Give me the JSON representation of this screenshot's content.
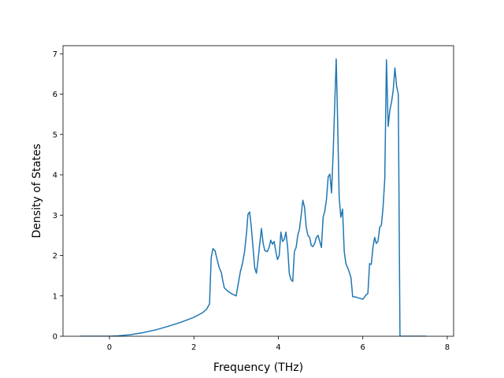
{
  "chart_data": {
    "type": "line",
    "title": "",
    "xlabel": "Frequency (THz)",
    "ylabel": "Density of States",
    "xlim": [
      -1.1,
      8.15
    ],
    "ylim": [
      0,
      7.2
    ],
    "x_ticks": [
      0,
      2,
      4,
      6,
      8
    ],
    "y_ticks": [
      0,
      1,
      2,
      3,
      4,
      5,
      6,
      7
    ],
    "grid": false,
    "legend": "none",
    "series": [
      {
        "color": "#1f77b4",
        "points": [
          [
            -0.7,
            0
          ],
          [
            0.0,
            0
          ],
          [
            0.2,
            0.01
          ],
          [
            0.5,
            0.04
          ],
          [
            0.8,
            0.09
          ],
          [
            1.1,
            0.16
          ],
          [
            1.4,
            0.25
          ],
          [
            1.7,
            0.35
          ],
          [
            2.0,
            0.47
          ],
          [
            2.2,
            0.58
          ],
          [
            2.3,
            0.67
          ],
          [
            2.37,
            0.8
          ],
          [
            2.41,
            1.95
          ],
          [
            2.45,
            2.17
          ],
          [
            2.5,
            2.12
          ],
          [
            2.55,
            1.9
          ],
          [
            2.6,
            1.7
          ],
          [
            2.65,
            1.58
          ],
          [
            2.68,
            1.4
          ],
          [
            2.72,
            1.2
          ],
          [
            2.8,
            1.12
          ],
          [
            2.9,
            1.05
          ],
          [
            3.0,
            1.0
          ],
          [
            3.05,
            1.3
          ],
          [
            3.1,
            1.6
          ],
          [
            3.15,
            1.8
          ],
          [
            3.2,
            2.1
          ],
          [
            3.25,
            2.6
          ],
          [
            3.28,
            3.02
          ],
          [
            3.32,
            3.08
          ],
          [
            3.36,
            2.7
          ],
          [
            3.4,
            2.2
          ],
          [
            3.44,
            1.7
          ],
          [
            3.48,
            1.56
          ],
          [
            3.52,
            1.9
          ],
          [
            3.56,
            2.3
          ],
          [
            3.6,
            2.67
          ],
          [
            3.64,
            2.3
          ],
          [
            3.68,
            2.12
          ],
          [
            3.74,
            2.1
          ],
          [
            3.78,
            2.2
          ],
          [
            3.82,
            2.38
          ],
          [
            3.86,
            2.28
          ],
          [
            3.9,
            2.35
          ],
          [
            3.94,
            2.1
          ],
          [
            3.98,
            1.9
          ],
          [
            4.02,
            2.0
          ],
          [
            4.06,
            2.58
          ],
          [
            4.1,
            2.35
          ],
          [
            4.14,
            2.4
          ],
          [
            4.18,
            2.58
          ],
          [
            4.22,
            2.2
          ],
          [
            4.26,
            1.55
          ],
          [
            4.3,
            1.4
          ],
          [
            4.34,
            1.36
          ],
          [
            4.38,
            2.1
          ],
          [
            4.42,
            2.2
          ],
          [
            4.46,
            2.5
          ],
          [
            4.5,
            2.65
          ],
          [
            4.54,
            3.0
          ],
          [
            4.58,
            3.37
          ],
          [
            4.62,
            3.2
          ],
          [
            4.66,
            2.7
          ],
          [
            4.7,
            2.5
          ],
          [
            4.74,
            2.45
          ],
          [
            4.78,
            2.25
          ],
          [
            4.82,
            2.22
          ],
          [
            4.86,
            2.3
          ],
          [
            4.9,
            2.45
          ],
          [
            4.94,
            2.5
          ],
          [
            4.98,
            2.35
          ],
          [
            5.02,
            2.2
          ],
          [
            5.06,
            2.95
          ],
          [
            5.1,
            3.1
          ],
          [
            5.14,
            3.4
          ],
          [
            5.18,
            3.95
          ],
          [
            5.22,
            4.02
          ],
          [
            5.26,
            3.55
          ],
          [
            5.3,
            4.6
          ],
          [
            5.34,
            5.9
          ],
          [
            5.37,
            6.87
          ],
          [
            5.4,
            5.5
          ],
          [
            5.44,
            3.45
          ],
          [
            5.48,
            2.95
          ],
          [
            5.52,
            3.15
          ],
          [
            5.56,
            2.1
          ],
          [
            5.6,
            1.8
          ],
          [
            5.66,
            1.65
          ],
          [
            5.72,
            1.45
          ],
          [
            5.76,
            0.98
          ],
          [
            5.84,
            0.97
          ],
          [
            5.9,
            0.95
          ],
          [
            5.96,
            0.93
          ],
          [
            6.0,
            0.92
          ],
          [
            6.04,
            0.97
          ],
          [
            6.08,
            1.03
          ],
          [
            6.12,
            1.06
          ],
          [
            6.16,
            1.8
          ],
          [
            6.2,
            1.78
          ],
          [
            6.24,
            2.2
          ],
          [
            6.28,
            2.45
          ],
          [
            6.32,
            2.3
          ],
          [
            6.36,
            2.35
          ],
          [
            6.4,
            2.7
          ],
          [
            6.44,
            2.75
          ],
          [
            6.48,
            3.2
          ],
          [
            6.52,
            3.9
          ],
          [
            6.56,
            6.85
          ],
          [
            6.6,
            5.2
          ],
          [
            6.64,
            5.6
          ],
          [
            6.68,
            5.8
          ],
          [
            6.72,
            6.1
          ],
          [
            6.76,
            6.65
          ],
          [
            6.8,
            6.2
          ],
          [
            6.84,
            6.0
          ],
          [
            6.88,
            0.0
          ],
          [
            7.5,
            0.0
          ]
        ]
      }
    ]
  }
}
